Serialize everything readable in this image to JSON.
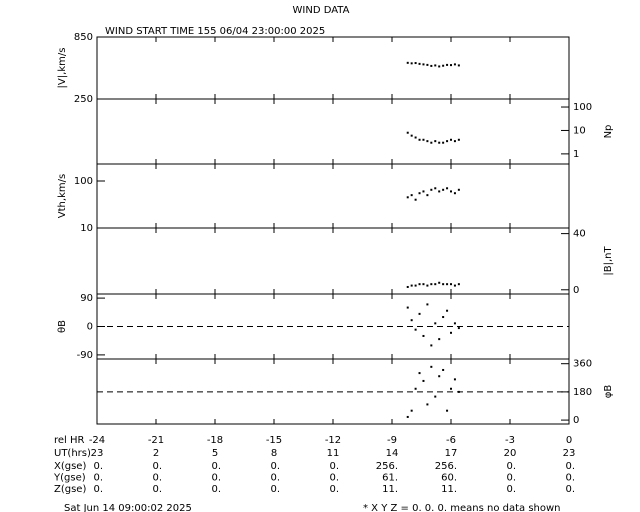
{
  "title": "WIND DATA",
  "subtitle": "WIND START TIME 155 06/04 23:00:00 2025",
  "xlim": [
    -24,
    0
  ],
  "xticks": [
    -24,
    -21,
    -18,
    -15,
    -12,
    -9,
    -6,
    -3,
    0
  ],
  "x_row_label": "rel HR",
  "ut_row_label": "UT(hrs)",
  "ut_labels": [
    23,
    2,
    5,
    8,
    11,
    14,
    17,
    20,
    23
  ],
  "position_table": {
    "row_labels": [
      "X(gse)",
      "Y(gse)",
      "Z(gse)"
    ],
    "rows": [
      [
        "0.",
        "0.",
        "0.",
        "0.",
        "0.",
        "256.",
        "256.",
        "0.",
        "0."
      ],
      [
        "0.",
        "0.",
        "0.",
        "0.",
        "0.",
        "61.",
        "60.",
        "0.",
        "0."
      ],
      [
        "0.",
        "0.",
        "0.",
        "0.",
        "0.",
        "11.",
        "11.",
        "0.",
        "0."
      ]
    ]
  },
  "footer": "Sat Jun 14 09:00:02 2025",
  "note": "* X Y Z = 0. 0. 0. means no data shown",
  "chart_data": [
    {
      "type": "scatter",
      "y_label": "|V|,km/s",
      "side": "left",
      "log": false,
      "ylim": [
        250,
        850
      ],
      "yticks": [
        250,
        850
      ],
      "x": [
        -8.2,
        -8.0,
        -7.8,
        -7.6,
        -7.4,
        -7.2,
        -7.0,
        -6.8,
        -6.6,
        -6.4,
        -6.2,
        -6.0,
        -5.8,
        -5.6
      ],
      "values": [
        600,
        595,
        598,
        590,
        585,
        580,
        570,
        575,
        565,
        572,
        580,
        578,
        585,
        575
      ]
    },
    {
      "type": "scatter",
      "y_label": "Np",
      "side": "right",
      "log": true,
      "ylim": [
        0.37,
        220
      ],
      "yticks": [
        1,
        10,
        100
      ],
      "x": [
        -8.2,
        -8.0,
        -7.8,
        -7.6,
        -7.4,
        -7.2,
        -7.0,
        -6.8,
        -6.6,
        -6.4,
        -6.2,
        -6.0,
        -5.8,
        -5.6
      ],
      "values": [
        8,
        6,
        5,
        4,
        4,
        3.5,
        3,
        3.5,
        3,
        3,
        3.5,
        4,
        3.5,
        4
      ]
    },
    {
      "type": "scatter",
      "y_label": "Vth,km/s",
      "side": "left",
      "log": true,
      "ylim": [
        10,
        230
      ],
      "yticks": [
        10,
        100
      ],
      "x": [
        -8.2,
        -8.0,
        -7.8,
        -7.6,
        -7.4,
        -7.2,
        -7.0,
        -6.8,
        -6.6,
        -6.4,
        -6.2,
        -6.0,
        -5.8,
        -5.6
      ],
      "values": [
        45,
        50,
        40,
        55,
        60,
        50,
        65,
        70,
        60,
        65,
        70,
        60,
        55,
        65
      ]
    },
    {
      "type": "scatter",
      "y_label": "|B|,nT",
      "side": "right",
      "log": false,
      "ylim": [
        -3,
        44
      ],
      "yticks": [
        0,
        40
      ],
      "x": [
        -8.2,
        -8.0,
        -7.8,
        -7.6,
        -7.4,
        -7.2,
        -7.0,
        -6.8,
        -6.6,
        -6.4,
        -6.2,
        -6.0,
        -5.8,
        -5.6
      ],
      "values": [
        2,
        3,
        3,
        4,
        4,
        3,
        4,
        4,
        5,
        4,
        4,
        4,
        3,
        4
      ]
    },
    {
      "type": "scatter",
      "y_label": "θB",
      "side": "left",
      "log": false,
      "ylim": [
        -103,
        103
      ],
      "yticks": [
        -90,
        0,
        90
      ],
      "ref_line": 0,
      "x": [
        -8.2,
        -8.0,
        -7.8,
        -7.6,
        -7.4,
        -7.2,
        -7.0,
        -6.8,
        -6.6,
        -6.4,
        -6.2,
        -6.0,
        -5.8,
        -5.6
      ],
      "values": [
        60,
        20,
        -10,
        40,
        -30,
        70,
        -60,
        10,
        -40,
        30,
        50,
        -20,
        10,
        -5
      ]
    },
    {
      "type": "scatter",
      "y_label": "φB",
      "side": "right",
      "log": false,
      "ylim": [
        -25,
        390
      ],
      "yticks": [
        0,
        180,
        360
      ],
      "ref_line": 180,
      "x": [
        -8.2,
        -8.0,
        -7.8,
        -7.6,
        -7.4,
        -7.2,
        -7.0,
        -6.8,
        -6.6,
        -6.4,
        -6.2,
        -6.0,
        -5.8,
        -5.6
      ],
      "values": [
        20,
        60,
        200,
        300,
        250,
        100,
        340,
        150,
        280,
        320,
        60,
        200,
        260,
        180
      ]
    }
  ]
}
